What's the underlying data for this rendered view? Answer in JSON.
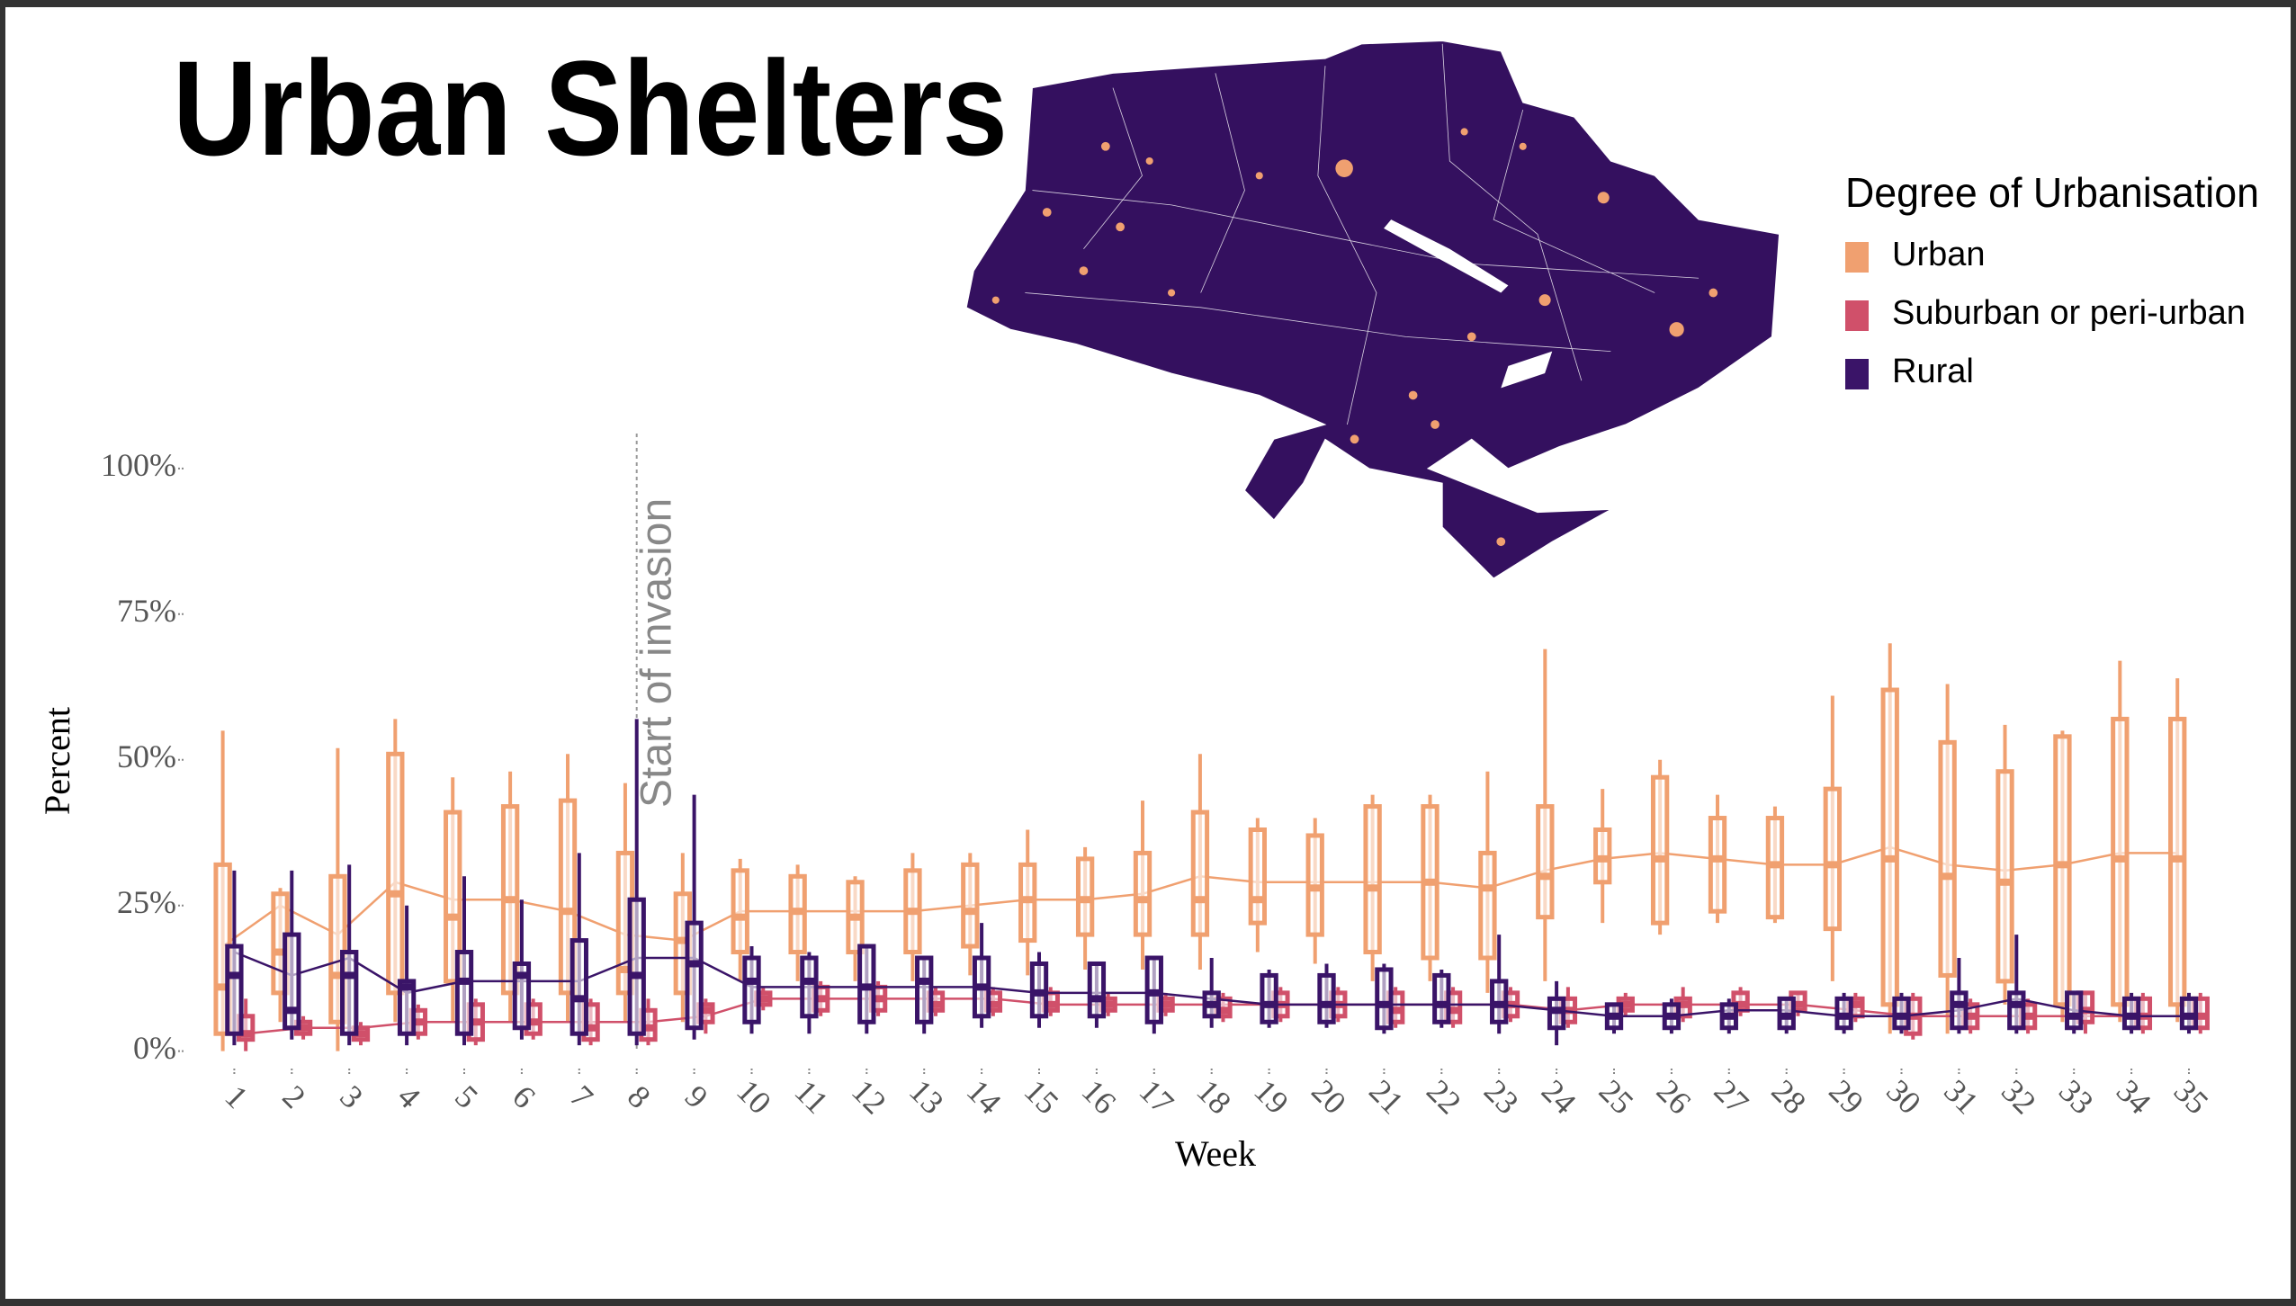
{
  "chart_data": {
    "type": "boxplot",
    "title": "Urban Shelters",
    "x_label": "Week",
    "y_label": "Percent",
    "legend_title": "Degree of Urbanisation",
    "annotation": {
      "text": "Start of invasion",
      "x": 8
    },
    "x": [
      1,
      2,
      3,
      4,
      5,
      6,
      7,
      8,
      9,
      10,
      11,
      12,
      13,
      14,
      15,
      16,
      17,
      18,
      19,
      20,
      21,
      22,
      23,
      24,
      25,
      26,
      27,
      28,
      29,
      30,
      31,
      32,
      33,
      34,
      35
    ],
    "ylim": [
      -2,
      106
    ],
    "yticks": [
      {
        "value": 0,
        "label": "0%"
      },
      {
        "value": 25,
        "label": "25%"
      },
      {
        "value": 50,
        "label": "50%"
      },
      {
        "value": 75,
        "label": "75%"
      },
      {
        "value": 100,
        "label": "100%"
      }
    ],
    "series": [
      {
        "name": "Urban",
        "color": "#f0a070",
        "low": [
          0,
          5,
          0,
          5,
          5,
          5,
          5,
          5,
          5,
          12,
          12,
          12,
          12,
          13,
          13,
          14,
          14,
          14,
          17,
          15,
          12,
          12,
          10,
          12,
          22,
          20,
          22,
          22,
          12,
          3,
          3,
          8,
          5,
          5,
          5
        ],
        "q1": [
          3,
          10,
          5,
          10,
          12,
          10,
          10,
          10,
          10,
          17,
          17,
          17,
          17,
          18,
          19,
          20,
          20,
          20,
          22,
          20,
          17,
          16,
          16,
          23,
          29,
          22,
          24,
          23,
          21,
          8,
          13,
          12,
          8,
          8,
          8
        ],
        "median": [
          11,
          17,
          13,
          27,
          23,
          26,
          24,
          14,
          19,
          23,
          24,
          23,
          24,
          24,
          26,
          26,
          26,
          26,
          26,
          28,
          28,
          29,
          28,
          30,
          33,
          33,
          33,
          32,
          32,
          33,
          30,
          29,
          32,
          33,
          33
        ],
        "q3": [
          32,
          27,
          30,
          51,
          41,
          42,
          43,
          34,
          27,
          31,
          30,
          29,
          31,
          32,
          32,
          33,
          34,
          41,
          38,
          37,
          42,
          42,
          34,
          42,
          38,
          47,
          40,
          40,
          45,
          62,
          53,
          48,
          54,
          57,
          57
        ],
        "high": [
          55,
          28,
          52,
          57,
          47,
          48,
          51,
          46,
          34,
          33,
          32,
          30,
          34,
          34,
          38,
          35,
          43,
          51,
          40,
          40,
          44,
          44,
          48,
          69,
          45,
          50,
          44,
          42,
          61,
          70,
          63,
          56,
          55,
          67,
          64
        ],
        "mean": [
          18,
          25,
          20,
          29,
          26,
          26,
          24,
          20,
          19,
          24,
          24,
          24,
          24,
          25,
          26,
          26,
          27,
          30,
          29,
          29,
          29,
          29,
          28,
          31,
          33,
          34,
          33,
          32,
          32,
          35,
          32,
          31,
          32,
          34,
          34
        ]
      },
      {
        "name": "Suburban or peri-urban",
        "color": "#d0506a",
        "low": [
          0,
          2,
          1,
          2,
          1,
          2,
          1,
          1,
          3,
          7,
          6,
          6,
          6,
          6,
          6,
          6,
          6,
          5,
          5,
          5,
          4,
          4,
          5,
          4,
          6,
          5,
          6,
          6,
          5,
          2,
          3,
          3,
          3,
          3,
          3
        ],
        "q1": [
          2,
          3,
          2,
          3,
          2,
          3,
          2,
          2,
          5,
          8,
          7,
          7,
          7,
          7,
          7,
          7,
          7,
          6,
          6,
          6,
          5,
          5,
          6,
          5,
          7,
          6,
          7,
          7,
          6,
          3,
          4,
          4,
          5,
          4,
          4
        ],
        "median": [
          3,
          4,
          3,
          5,
          5,
          5,
          4,
          4,
          7,
          9,
          9,
          9,
          8,
          8,
          8,
          8,
          8,
          7,
          8,
          8,
          7,
          7,
          8,
          7,
          8,
          8,
          8,
          8,
          8,
          6,
          6,
          6,
          7,
          6,
          6
        ],
        "q3": [
          6,
          5,
          4,
          7,
          8,
          8,
          8,
          7,
          8,
          10,
          11,
          11,
          10,
          10,
          10,
          9,
          9,
          9,
          10,
          10,
          10,
          10,
          10,
          9,
          9,
          9,
          10,
          10,
          9,
          9,
          8,
          8,
          10,
          9,
          9
        ],
        "high": [
          9,
          6,
          5,
          8,
          9,
          9,
          9,
          9,
          9,
          11,
          12,
          12,
          11,
          11,
          11,
          10,
          10,
          10,
          11,
          11,
          11,
          11,
          11,
          11,
          10,
          11,
          11,
          10,
          10,
          10,
          9,
          9,
          10,
          10,
          10
        ],
        "mean": [
          3,
          4,
          4,
          5,
          5,
          5,
          5,
          5,
          6,
          9,
          9,
          9,
          9,
          9,
          8,
          8,
          8,
          8,
          8,
          8,
          8,
          8,
          8,
          7,
          8,
          8,
          8,
          8,
          7,
          6,
          6,
          6,
          6,
          6,
          6
        ]
      },
      {
        "name": "Rural",
        "color": "#3a1468",
        "low": [
          1,
          2,
          1,
          1,
          1,
          2,
          1,
          1,
          2,
          3,
          3,
          3,
          3,
          4,
          4,
          4,
          3,
          4,
          4,
          4,
          3,
          4,
          3,
          1,
          3,
          3,
          3,
          3,
          3,
          3,
          3,
          3,
          3,
          3,
          3
        ],
        "q1": [
          3,
          4,
          3,
          3,
          3,
          4,
          3,
          3,
          4,
          5,
          6,
          5,
          5,
          6,
          6,
          6,
          5,
          6,
          5,
          5,
          4,
          5,
          5,
          4,
          4,
          4,
          4,
          4,
          4,
          4,
          4,
          4,
          4,
          4,
          4
        ],
        "median": [
          13,
          7,
          13,
          11,
          12,
          13,
          9,
          13,
          15,
          12,
          12,
          11,
          12,
          11,
          10,
          9,
          10,
          8,
          8,
          8,
          8,
          8,
          8,
          7,
          6,
          6,
          6,
          6,
          6,
          6,
          8,
          8,
          6,
          6,
          6
        ],
        "q3": [
          18,
          20,
          17,
          12,
          17,
          15,
          19,
          26,
          22,
          16,
          16,
          18,
          16,
          16,
          15,
          15,
          16,
          10,
          13,
          13,
          14,
          13,
          12,
          9,
          8,
          8,
          8,
          9,
          9,
          9,
          10,
          10,
          10,
          9,
          9
        ],
        "high": [
          31,
          31,
          32,
          25,
          30,
          26,
          34,
          57,
          44,
          18,
          17,
          18,
          16,
          22,
          17,
          15,
          16,
          16,
          14,
          15,
          15,
          14,
          20,
          12,
          8,
          9,
          9,
          9,
          10,
          10,
          16,
          20,
          10,
          10,
          10
        ],
        "mean": [
          17,
          13,
          16,
          10,
          12,
          12,
          12,
          16,
          16,
          11,
          11,
          11,
          11,
          11,
          10,
          10,
          10,
          9,
          8,
          8,
          8,
          8,
          8,
          7,
          6,
          6,
          7,
          7,
          6,
          6,
          7,
          9,
          7,
          6,
          6
        ]
      }
    ]
  }
}
